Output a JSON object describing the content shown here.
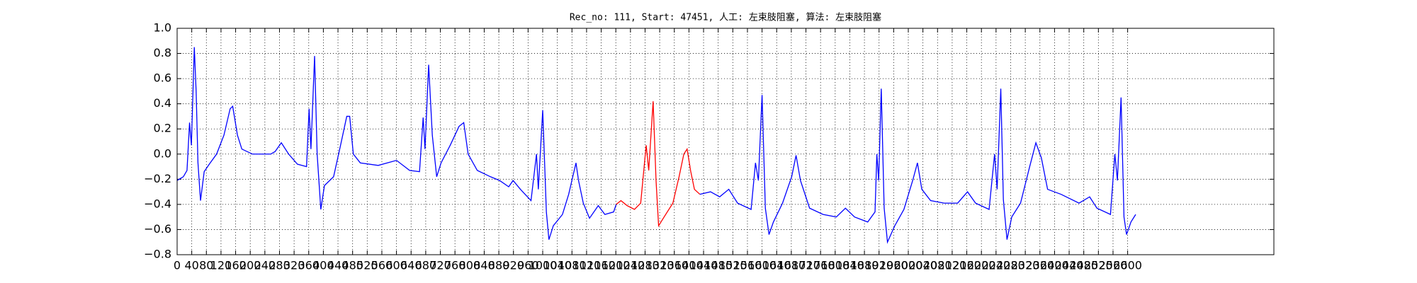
{
  "chart_data": {
    "type": "line",
    "title": "Rec_no: 111, Start: 47451, 人工: 左束肢阻塞, 算法: 左束肢阻塞",
    "xlim": [
      0,
      3000
    ],
    "xticks": [
      0,
      40,
      80,
      120,
      160,
      200,
      240,
      280,
      320,
      360,
      400,
      440,
      480,
      520,
      560,
      600,
      640,
      680,
      720,
      760,
      800,
      840,
      880,
      920,
      960,
      1000,
      1040,
      1080,
      1120,
      1160,
      1200,
      1240,
      1280,
      1320,
      1360,
      1400,
      1440,
      1480,
      1520,
      1560,
      1600,
      1640,
      1680,
      1720,
      1760,
      1800,
      1840,
      1880,
      1920,
      1960,
      2000,
      2040,
      2080,
      2120,
      2160,
      2200,
      2240,
      2280,
      2320,
      2360,
      2400,
      2440,
      2480,
      2520,
      2560,
      2600
    ],
    "ylim": [
      -0.8,
      1.0
    ],
    "yticks": [
      {
        "value": -0.8,
        "label": "−0.8"
      },
      {
        "value": -0.6,
        "label": "−0.6"
      },
      {
        "value": -0.4,
        "label": "−0.4"
      },
      {
        "value": -0.2,
        "label": "−0.2"
      },
      {
        "value": 0,
        "label": "0.0"
      },
      0.2,
      0.4,
      0.6,
      0.8,
      {
        "value": 1,
        "label": "1.0"
      }
    ],
    "grid": true,
    "series": [
      {
        "color": "#0000ff",
        "x": [
          0,
          17,
          27,
          34,
          39,
          47,
          52,
          57,
          64,
          74,
          88,
          108,
          128,
          145,
          152,
          165,
          177,
          206,
          256,
          268,
          285,
          305,
          329,
          354,
          361,
          366,
          376,
          383,
          393,
          403,
          428,
          447,
          464,
          472,
          482,
          501,
          550,
          600,
          636,
          663,
          673,
          678,
          688,
          698,
          710,
          722,
          747,
          771,
          784,
          796,
          821,
          857,
          882,
          907,
          919,
          939,
          968,
          983,
          988,
          1000,
          1010,
          1017,
          1029,
          1054,
          1071,
          1091,
          1098,
          1111,
          1128,
          1152,
          1170,
          1194,
          1201
        ],
        "values": [
          -0.21,
          -0.18,
          -0.13,
          0.25,
          0.07,
          0.85,
          0.5,
          -0.07,
          -0.37,
          -0.14,
          -0.08,
          0,
          0.15,
          0.36,
          0.38,
          0.15,
          0.04,
          0,
          0,
          0.02,
          0.09,
          0,
          -0.08,
          -0.1,
          0.36,
          0.04,
          0.78,
          0,
          -0.44,
          -0.25,
          -0.18,
          0.07,
          0.3,
          0.3,
          0,
          -0.07,
          -0.09,
          -0.05,
          -0.13,
          -0.14,
          0.29,
          0.04,
          0.71,
          0.15,
          -0.18,
          -0.07,
          0.07,
          0.22,
          0.25,
          0,
          -0.13,
          -0.18,
          -0.21,
          -0.26,
          -0.21,
          -0.28,
          -0.37,
          0,
          -0.28,
          0.35,
          -0.46,
          -0.68,
          -0.57,
          -0.48,
          -0.32,
          -0.07,
          -0.21,
          -0.39,
          -0.51,
          -0.41,
          -0.48,
          -0.46,
          -0.4
        ]
      },
      {
        "color": "#ff0000",
        "x": [
          1201,
          1214,
          1231,
          1251,
          1268,
          1283,
          1290,
          1302,
          1310,
          1317,
          1332,
          1356,
          1373,
          1386,
          1395,
          1405,
          1415,
          1430
        ],
        "values": [
          -0.4,
          -0.37,
          -0.41,
          -0.44,
          -0.39,
          0.07,
          -0.13,
          0.42,
          -0.21,
          -0.57,
          -0.5,
          -0.39,
          -0.18,
          0,
          0.04,
          -0.14,
          -0.28,
          -0.32
        ]
      },
      {
        "color": "#0000ff",
        "x": [
          1430,
          1459,
          1484,
          1509,
          1533,
          1570,
          1582,
          1590,
          1600,
          1609,
          1619,
          1631,
          1656,
          1681,
          1693,
          1705,
          1730,
          1767,
          1803,
          1828,
          1853,
          1889,
          1909,
          1914,
          1919,
          1926,
          1934,
          1943,
          1963,
          1988,
          2012,
          2025,
          2037,
          2061,
          2098,
          2135,
          2162,
          2184,
          2221,
          2236,
          2243,
          2253,
          2260,
          2270,
          2283,
          2307,
          2332,
          2349,
          2364,
          2381,
          2418,
          2467,
          2496,
          2516,
          2553,
          2565,
          2572,
          2582,
          2590,
          2597,
          2609,
          2622
        ],
        "values": [
          -0.32,
          -0.3,
          -0.34,
          -0.28,
          -0.39,
          -0.44,
          -0.07,
          -0.21,
          0.47,
          -0.43,
          -0.64,
          -0.54,
          -0.39,
          -0.18,
          -0.01,
          -0.21,
          -0.43,
          -0.48,
          -0.5,
          -0.43,
          -0.5,
          -0.54,
          -0.46,
          0,
          -0.21,
          0.52,
          -0.43,
          -0.7,
          -0.57,
          -0.44,
          -0.21,
          -0.07,
          -0.28,
          -0.37,
          -0.39,
          -0.39,
          -0.3,
          -0.39,
          -0.44,
          0,
          -0.28,
          0.52,
          -0.36,
          -0.68,
          -0.5,
          -0.39,
          -0.1,
          0.09,
          -0.03,
          -0.28,
          -0.32,
          -0.39,
          -0.34,
          -0.43,
          -0.48,
          0,
          -0.21,
          0.45,
          -0.5,
          -0.64,
          -0.54,
          -0.48
        ]
      }
    ]
  }
}
